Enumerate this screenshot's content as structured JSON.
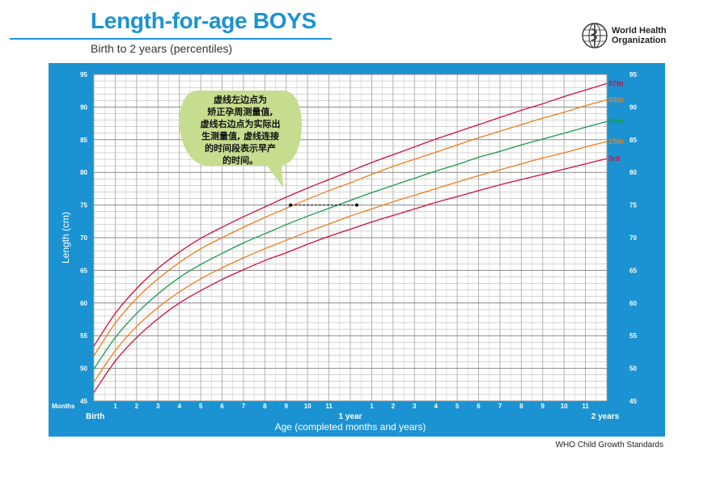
{
  "header": {
    "title": "Length-for-age BOYS",
    "subtitle": "Birth to 2 years (percentiles)",
    "org_line1": "World Health",
    "org_line2": "Organization",
    "logo_icon": "who-emblem-icon"
  },
  "footer": {
    "source": "WHO Child Growth Standards"
  },
  "callout": {
    "lines": [
      "虚线左边点为",
      "矫正孕周测量值,",
      "虚线右边点为实际出",
      "生测量值, 虚线连接",
      "的时间段表示早产",
      "的时间。"
    ]
  },
  "colors": {
    "frame": "#1b93d2",
    "grid": "#a9a9a9",
    "p97": "#d0103a",
    "p85": "#f07d1a",
    "p50": "#1a9a4a",
    "p15": "#f07d1a",
    "p3": "#d0103a",
    "callout_fill": "#c6dd8f"
  },
  "chart_data": {
    "type": "line",
    "title": "Length-for-age BOYS",
    "subtitle": "Birth to 2 years (percentiles)",
    "xlabel": "Age (completed months and years)",
    "ylabel": "Length (cm)",
    "xlim": [
      0,
      24
    ],
    "ylim": [
      45,
      95
    ],
    "grid": true,
    "x_axis_corner_label": "Months",
    "x_tick_labels": [
      {
        "x": 0,
        "label": "Birth"
      },
      {
        "x": 1,
        "label": "1"
      },
      {
        "x": 2,
        "label": "2"
      },
      {
        "x": 3,
        "label": "3"
      },
      {
        "x": 4,
        "label": "4"
      },
      {
        "x": 5,
        "label": "5"
      },
      {
        "x": 6,
        "label": "6"
      },
      {
        "x": 7,
        "label": "7"
      },
      {
        "x": 8,
        "label": "8"
      },
      {
        "x": 9,
        "label": "9"
      },
      {
        "x": 10,
        "label": "10"
      },
      {
        "x": 11,
        "label": "11"
      },
      {
        "x": 12,
        "label": "1 year"
      },
      {
        "x": 13,
        "label": "1"
      },
      {
        "x": 14,
        "label": "2"
      },
      {
        "x": 15,
        "label": "3"
      },
      {
        "x": 16,
        "label": "4"
      },
      {
        "x": 17,
        "label": "5"
      },
      {
        "x": 18,
        "label": "6"
      },
      {
        "x": 19,
        "label": "7"
      },
      {
        "x": 20,
        "label": "8"
      },
      {
        "x": 21,
        "label": "9"
      },
      {
        "x": 22,
        "label": "10"
      },
      {
        "x": 23,
        "label": "11"
      },
      {
        "x": 24,
        "label": "2 years"
      }
    ],
    "y_ticks": [
      45,
      50,
      55,
      60,
      65,
      70,
      75,
      80,
      85,
      90,
      95
    ],
    "x": [
      0,
      1,
      2,
      3,
      4,
      5,
      6,
      7,
      8,
      9,
      10,
      11,
      12,
      13,
      14,
      15,
      16,
      17,
      18,
      19,
      20,
      21,
      22,
      23,
      24
    ],
    "series": [
      {
        "name": "97th",
        "color": "#d0103a",
        "values": [
          53.4,
          58.4,
          62.2,
          65.3,
          67.8,
          69.9,
          71.6,
          73.2,
          74.7,
          76.2,
          77.6,
          78.9,
          80.2,
          81.5,
          82.7,
          83.9,
          85.1,
          86.2,
          87.3,
          88.4,
          89.5,
          90.5,
          91.6,
          92.6,
          93.6
        ]
      },
      {
        "name": "85th",
        "color": "#f07d1a",
        "values": [
          51.9,
          56.9,
          60.7,
          63.7,
          66.2,
          68.3,
          70.0,
          71.6,
          73.1,
          74.5,
          75.9,
          77.2,
          78.4,
          79.7,
          80.9,
          82.0,
          83.1,
          84.2,
          85.3,
          86.3,
          87.3,
          88.3,
          89.2,
          90.2,
          91.1
        ]
      },
      {
        "name": "50th",
        "color": "#1a9a4a",
        "values": [
          49.9,
          54.7,
          58.4,
          61.4,
          63.9,
          65.9,
          67.6,
          69.2,
          70.6,
          72.0,
          73.3,
          74.5,
          75.7,
          76.9,
          78.0,
          79.1,
          80.2,
          81.2,
          82.3,
          83.2,
          84.2,
          85.1,
          86.0,
          86.9,
          87.8
        ]
      },
      {
        "name": "15th",
        "color": "#f07d1a",
        "values": [
          47.9,
          52.7,
          56.4,
          59.3,
          61.7,
          63.7,
          65.4,
          66.9,
          68.3,
          69.6,
          70.9,
          72.1,
          73.3,
          74.4,
          75.5,
          76.5,
          77.5,
          78.5,
          79.5,
          80.4,
          81.3,
          82.2,
          83.0,
          83.9,
          84.7
        ]
      },
      {
        "name": "3rd",
        "color": "#d0103a",
        "values": [
          46.3,
          51.1,
          54.7,
          57.6,
          60.0,
          61.9,
          63.6,
          65.1,
          66.5,
          67.7,
          69.0,
          70.2,
          71.3,
          72.4,
          73.4,
          74.4,
          75.4,
          76.3,
          77.2,
          78.1,
          78.9,
          79.7,
          80.5,
          81.3,
          82.1
        ]
      }
    ],
    "annotation": {
      "type": "dashed-segment",
      "x_start": 9.2,
      "x_end": 12.3,
      "y": 75.0
    }
  }
}
